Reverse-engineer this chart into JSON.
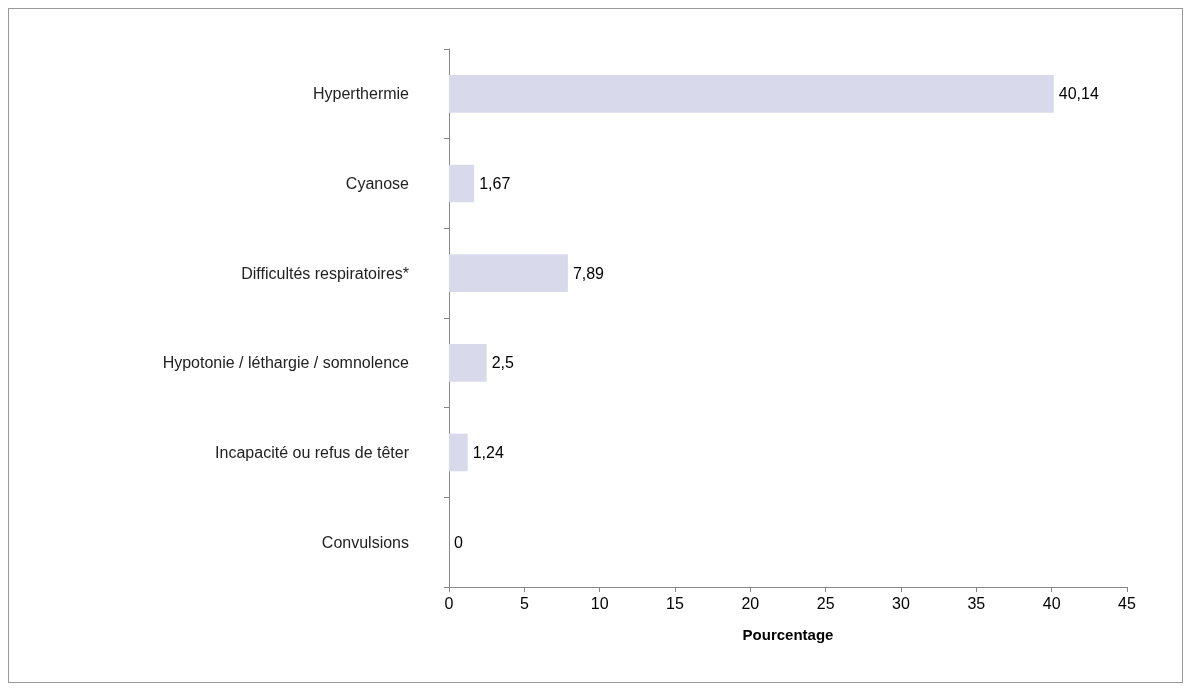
{
  "chart_data": {
    "type": "bar",
    "orientation": "horizontal",
    "categories": [
      "Hyperthermie",
      "Cyanose",
      "Difficultés respiratoires*",
      "Hypotonie / léthargie / somnolence",
      "Incapacité ou refus de têter",
      "Convulsions"
    ],
    "values": [
      40.14,
      1.67,
      7.89,
      2.5,
      1.24,
      0
    ],
    "value_labels": [
      "40,14",
      "1,67",
      "7,89",
      "2,5",
      "1,24",
      "0"
    ],
    "color": "#d9d9ec",
    "xlabel": "Pourcentage",
    "xlim": [
      0,
      45
    ],
    "xticks": [
      0,
      5,
      10,
      15,
      20,
      25,
      30,
      35,
      40,
      45
    ],
    "grid": false
  }
}
